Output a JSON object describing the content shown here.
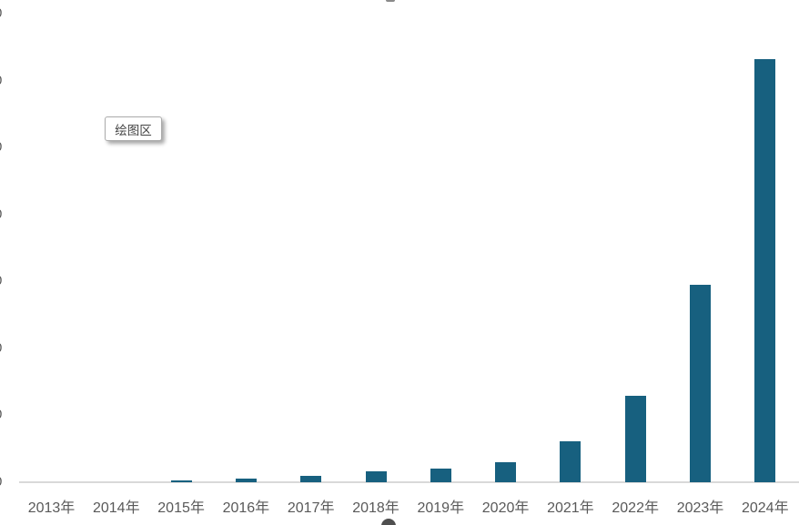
{
  "tooltip": {
    "label": "绘图区"
  },
  "colors": {
    "bar_fill": "#17607f",
    "axis_line": "#d9d9d9",
    "tick_text": "#595959",
    "tooltip_border": "#ababab"
  },
  "chart_data": {
    "type": "bar",
    "title": "",
    "categories": [
      "2013年",
      "2014年",
      "2015年",
      "2016年",
      "2017年",
      "2018年",
      "2019年",
      "2020年",
      "2021年",
      "2022年",
      "2023年",
      "2024年"
    ],
    "values": [
      4,
      8,
      30,
      60,
      100,
      165,
      205,
      300,
      615,
      1305,
      2965,
      6340
    ],
    "xlabel": "",
    "ylabel": "",
    "ylim": [
      0,
      7000
    ],
    "y_tick_step": 1000,
    "y_tick_labels_visible": [
      "0",
      "0",
      "0",
      "0",
      "0",
      "0",
      "0",
      "0"
    ],
    "y_axis_labels_truncated": true,
    "grid": false,
    "legend": false,
    "bar_color": "#17607f"
  }
}
